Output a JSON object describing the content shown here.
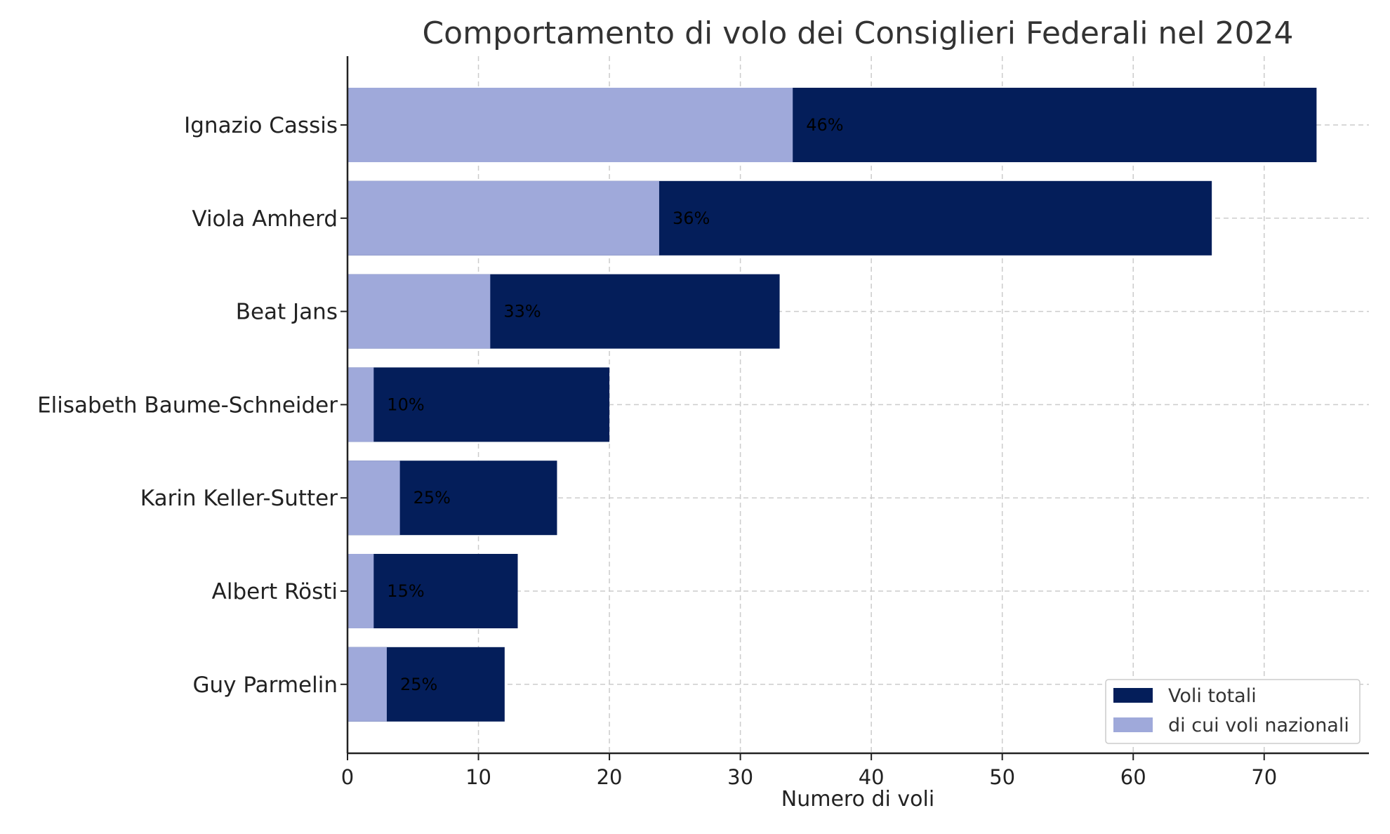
{
  "chart_data": {
    "type": "bar",
    "orientation": "horizontal",
    "stacking": "overlay",
    "title": "Comportamento di volo dei Consiglieri Federali nel 2024",
    "xlabel": "Numero di voli",
    "ylabel": "",
    "xlim": [
      0,
      78
    ],
    "xticks": [
      0,
      10,
      20,
      30,
      40,
      50,
      60,
      70
    ],
    "grid": true,
    "legend_position": "bottom-right",
    "categories": [
      "Ignazio Cassis",
      "Viola Amherd",
      "Beat Jans",
      "Elisabeth Baume-Schneider",
      "Karin Keller-Sutter",
      "Albert Rösti",
      "Guy Parmelin"
    ],
    "series": [
      {
        "name": "Voli totali",
        "color": "#041e5a",
        "values": [
          74,
          66,
          33,
          20,
          16,
          13,
          12
        ]
      },
      {
        "name": "di cui voli nazionali",
        "color": "#9fa9da",
        "values": [
          34,
          23.8,
          10.9,
          2,
          4,
          2,
          3
        ]
      }
    ],
    "data_labels": [
      "46%",
      "36%",
      "33%",
      "10%",
      "25%",
      "15%",
      "25%"
    ]
  }
}
